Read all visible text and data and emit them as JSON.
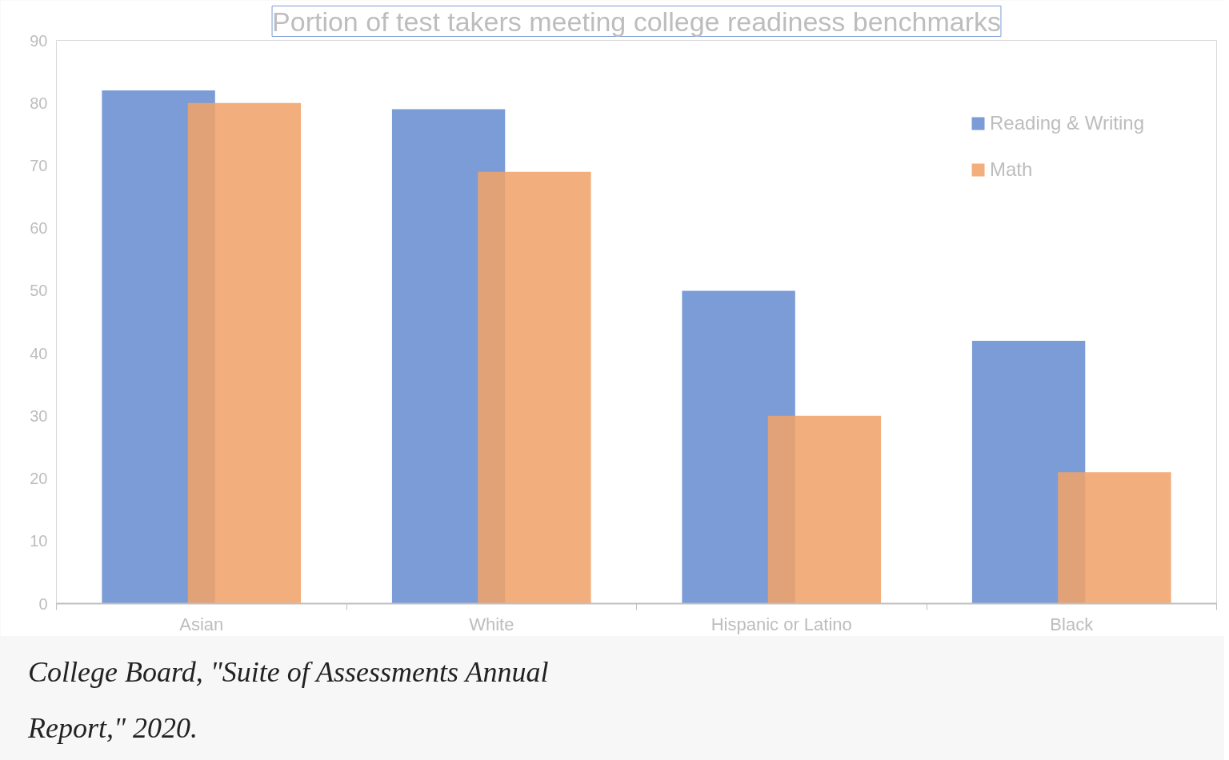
{
  "chart_data": {
    "type": "bar",
    "title": "Portion of test takers meeting college readiness benchmarks",
    "categories": [
      "Asian",
      "White",
      "Hispanic or Latino",
      "Black"
    ],
    "series": [
      {
        "name": "Reading & Writing",
        "color": "#7b9cd6",
        "values": [
          82,
          79,
          50,
          42
        ]
      },
      {
        "name": "Math",
        "color": "#f0a36b",
        "values": [
          80,
          69,
          30,
          21
        ]
      }
    ],
    "ylim": [
      0,
      90
    ],
    "yticks": [
      0,
      10,
      20,
      30,
      40,
      50,
      60,
      70,
      80,
      90
    ],
    "grid": false,
    "legend": "top right",
    "annotations": [
      "College Board, \"Suite of Assessments Annual Report,\" 2020."
    ]
  }
}
